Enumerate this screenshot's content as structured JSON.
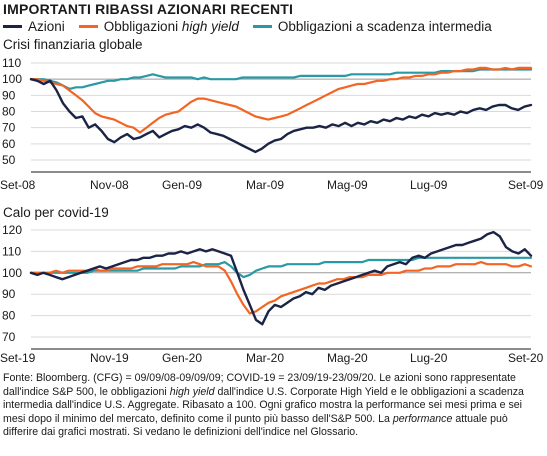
{
  "title": "IMPORTANTI RIBASSI AZIONARI RECENTI",
  "legend": [
    {
      "label": "Azioni",
      "italic": "",
      "color": "#1b2446"
    },
    {
      "label": "Obbligazioni ",
      "italic": "high yield",
      "color": "#f26522"
    },
    {
      "label": "Obbligazioni a scadenza intermedia",
      "italic": "",
      "color": "#2a99a6"
    }
  ],
  "footnote": {
    "p1": "Fonte: Bloomberg. (CFG) = 09/09/08-09/09/09; COVID-19 = 23/09/19-23/09/20. Le azioni sono rappresentate dall'indice S&P 500, le obbligazioni ",
    "i1": "high yield",
    "p2": " dall'indice U.S. Corporate High Yield e le obbligazioni a scadenza intermedia dall'indice U.S. Aggregate. Ribasato a 100. Ogni grafico mostra la performance sei mesi prima e sei mesi dopo il minimo del mercato, definito come il punto più basso dell'S&P 500. La ",
    "i2": "performance",
    "p3": " attuale può differire dai grafici mostrati. Si vedano le definizioni dell'indice nel Glossario."
  },
  "chart_data": [
    {
      "type": "line",
      "title": "Crisi finanziaria globale",
      "x_labels": [
        "Set-08",
        "Nov-08",
        "Gen-09",
        "Mar-09",
        "Mag-09",
        "Lug-09",
        "Set-09"
      ],
      "ylim": [
        50,
        110
      ],
      "yticks": [
        50,
        60,
        70,
        80,
        90,
        100,
        110
      ],
      "series": [
        {
          "name": "Azioni",
          "color": "#1b2446",
          "values": [
            100,
            99,
            97,
            99,
            93,
            85,
            80,
            76,
            77,
            70,
            72,
            68,
            63,
            61,
            64,
            66,
            63,
            64,
            66,
            68,
            64,
            66,
            68,
            69,
            71,
            70,
            72,
            70,
            67,
            66,
            65,
            63,
            61,
            59,
            57,
            55,
            57,
            60,
            62,
            63,
            66,
            68,
            69,
            70,
            70,
            71,
            70,
            72,
            71,
            73,
            71,
            73,
            72,
            74,
            73,
            75,
            74,
            76,
            75,
            77,
            76,
            78,
            77,
            79,
            78,
            79,
            78,
            80,
            79,
            81,
            82,
            81,
            83,
            84,
            84,
            82,
            81,
            83,
            84
          ]
        },
        {
          "name": "Obbligazioni high yield",
          "color": "#f26522",
          "values": [
            100,
            100,
            99,
            98,
            97,
            96,
            93,
            90,
            87,
            83,
            79,
            77,
            76,
            75,
            73,
            71,
            70,
            67,
            70,
            73,
            76,
            78,
            79,
            80,
            83,
            86,
            88,
            88,
            87,
            86,
            85,
            84,
            83,
            81,
            79,
            77,
            76,
            75,
            76,
            77,
            78,
            80,
            82,
            84,
            86,
            88,
            90,
            92,
            94,
            95,
            96,
            97,
            97,
            98,
            99,
            99,
            100,
            100,
            101,
            101,
            102,
            102,
            103,
            103,
            104,
            104,
            105,
            105,
            106,
            106,
            107,
            107,
            106,
            106,
            107,
            106,
            107,
            107,
            107
          ]
        },
        {
          "name": "Obbligazioni a scadenza intermedia",
          "color": "#2a99a6",
          "values": [
            100,
            100,
            100,
            99,
            98,
            96,
            94,
            95,
            95,
            96,
            97,
            98,
            99,
            99,
            100,
            100,
            101,
            101,
            102,
            103,
            102,
            101,
            101,
            101,
            101,
            101,
            100,
            101,
            100,
            100,
            100,
            100,
            100,
            101,
            101,
            101,
            101,
            101,
            101,
            101,
            101,
            101,
            102,
            102,
            102,
            102,
            102,
            102,
            102,
            102,
            103,
            103,
            103,
            103,
            103,
            103,
            103,
            104,
            104,
            104,
            104,
            104,
            104,
            104,
            105,
            105,
            105,
            105,
            105,
            105,
            106,
            106,
            106,
            106,
            106,
            106,
            106,
            106,
            106
          ]
        }
      ]
    },
    {
      "type": "line",
      "title": "Calo per covid-19",
      "x_labels": [
        "Set-19",
        "Nov-19",
        "Gen-20",
        "Mar-20",
        "Mag-20",
        "Lug-20",
        "Set-20"
      ],
      "ylim": [
        70,
        120
      ],
      "yticks": [
        70,
        80,
        90,
        100,
        110,
        120
      ],
      "series": [
        {
          "name": "Azioni",
          "color": "#1b2446",
          "values": [
            100,
            99,
            100,
            99,
            98,
            97,
            98,
            99,
            100,
            101,
            102,
            103,
            102,
            103,
            104,
            105,
            106,
            106,
            107,
            107,
            108,
            108,
            109,
            109,
            110,
            109,
            110,
            111,
            110,
            111,
            110,
            109,
            108,
            100,
            92,
            85,
            78,
            76,
            82,
            85,
            84,
            86,
            88,
            89,
            91,
            90,
            93,
            92,
            94,
            95,
            96,
            97,
            98,
            99,
            100,
            101,
            100,
            103,
            104,
            105,
            104,
            107,
            108,
            107,
            109,
            110,
            111,
            112,
            113,
            113,
            114,
            115,
            116,
            118,
            119,
            117,
            112,
            110,
            109,
            111,
            108
          ]
        },
        {
          "name": "Obbligazioni high yield",
          "color": "#f26522",
          "values": [
            100,
            100,
            100,
            100,
            101,
            100,
            101,
            101,
            101,
            101,
            102,
            101,
            101,
            102,
            102,
            102,
            102,
            103,
            103,
            103,
            103,
            104,
            104,
            104,
            104,
            104,
            105,
            104,
            103,
            103,
            103,
            101,
            96,
            90,
            85,
            81,
            82,
            84,
            86,
            87,
            89,
            90,
            91,
            92,
            93,
            94,
            95,
            95,
            96,
            97,
            97,
            98,
            98,
            98,
            99,
            99,
            99,
            100,
            100,
            100,
            101,
            101,
            101,
            102,
            102,
            103,
            103,
            103,
            104,
            104,
            104,
            104,
            105,
            104,
            104,
            104,
            104,
            103,
            103,
            104,
            103
          ]
        },
        {
          "name": "Obbligazioni a scadenza intermedia",
          "color": "#2a99a6",
          "values": [
            100,
            100,
            100,
            100,
            100,
            100,
            100,
            100,
            100,
            100,
            101,
            101,
            101,
            101,
            101,
            101,
            101,
            101,
            102,
            102,
            102,
            102,
            102,
            102,
            103,
            103,
            103,
            103,
            104,
            104,
            104,
            105,
            103,
            100,
            98,
            99,
            101,
            102,
            103,
            103,
            103,
            104,
            104,
            104,
            104,
            104,
            104,
            105,
            105,
            105,
            105,
            105,
            105,
            105,
            106,
            106,
            106,
            106,
            106,
            106,
            106,
            106,
            107,
            107,
            107,
            107,
            107,
            107,
            107,
            107,
            107,
            107,
            107,
            107,
            107,
            107,
            107,
            107,
            107,
            107,
            107
          ]
        }
      ]
    }
  ]
}
